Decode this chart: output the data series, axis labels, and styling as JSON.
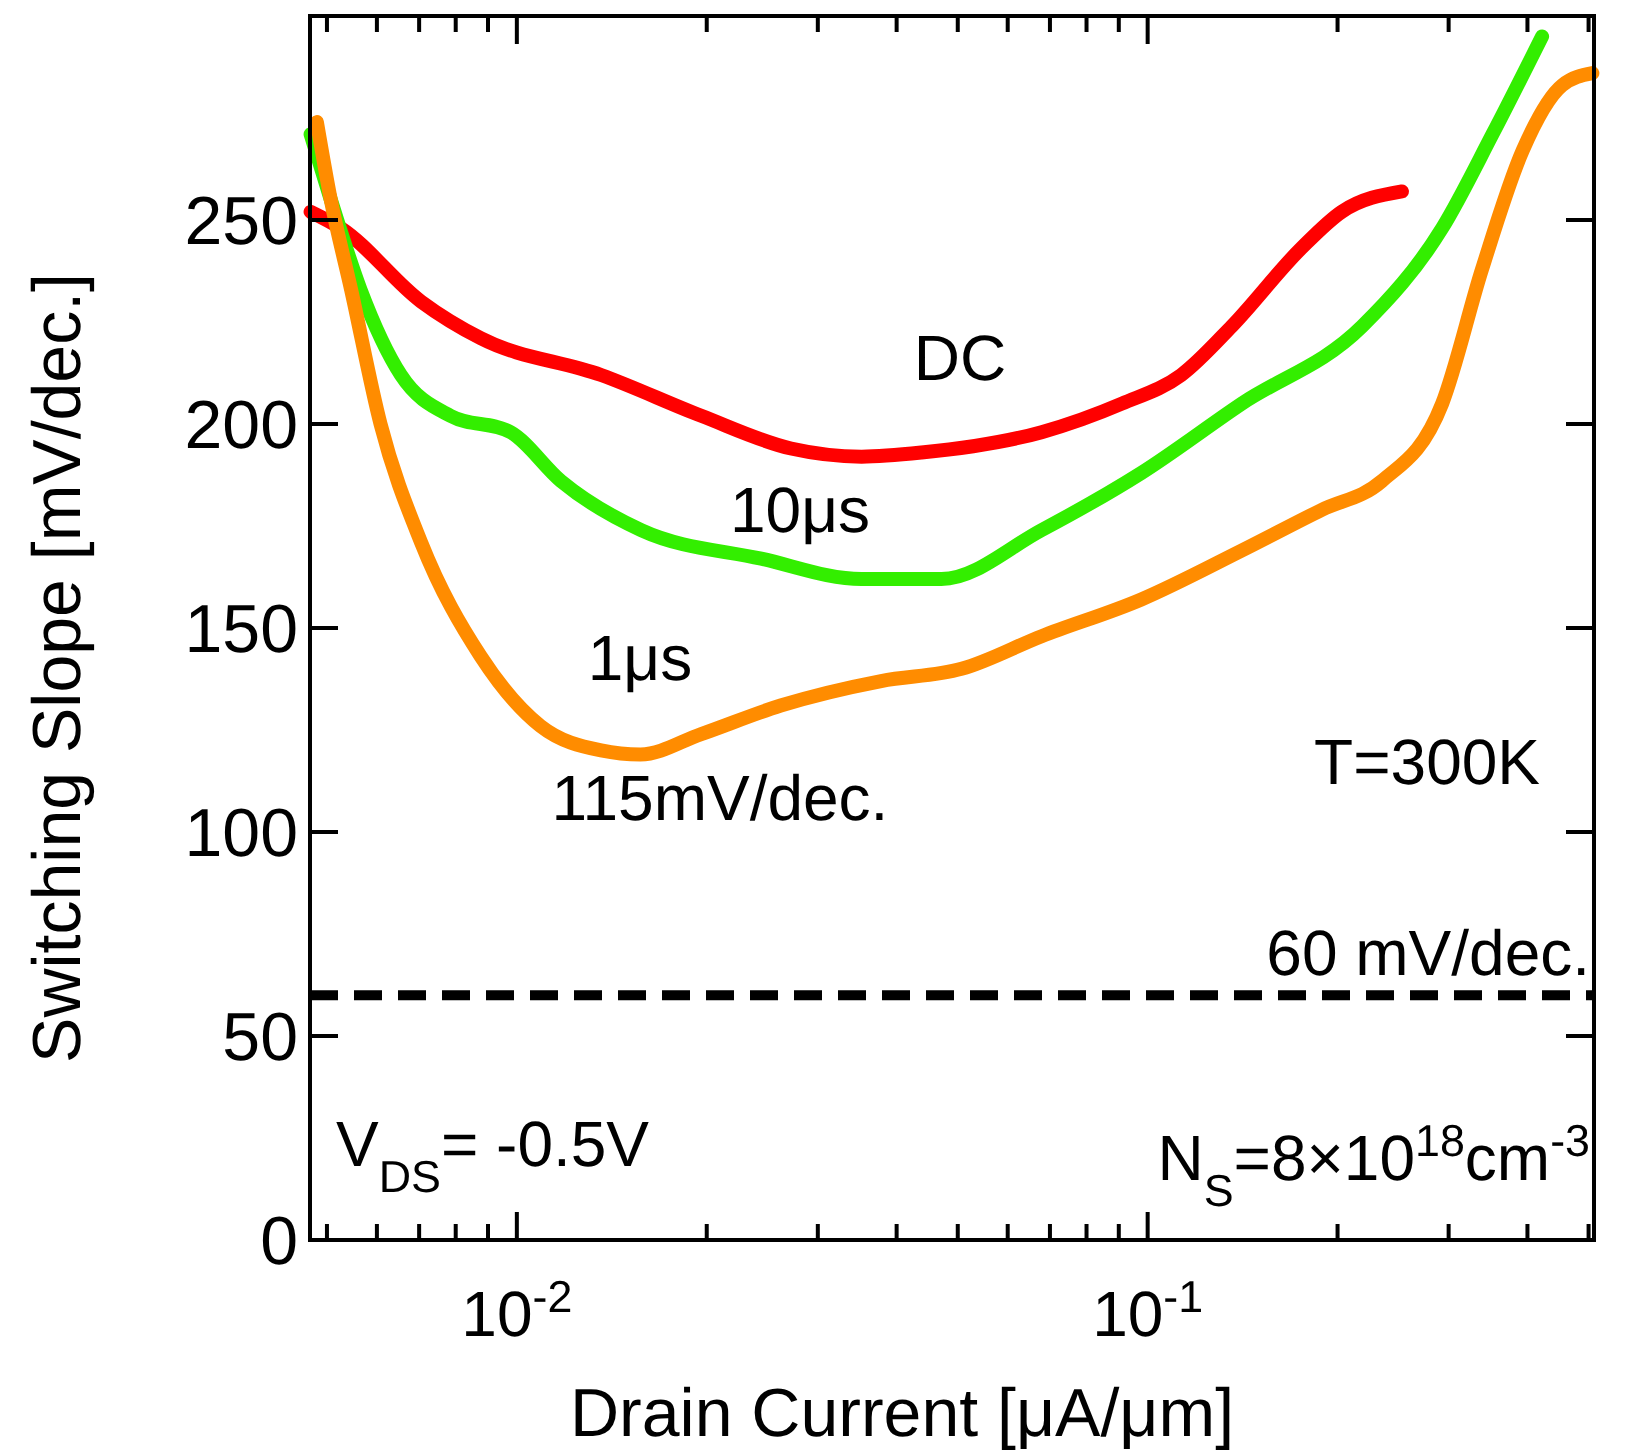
{
  "chart_data": {
    "type": "line",
    "xlabel": "Drain Current [μA/μm]",
    "ylabel": "Switching Slope [mV/dec.]",
    "log": "x",
    "xlim": [
      0.0047,
      0.51
    ],
    "ylim": [
      0,
      300
    ],
    "xticks": [
      {
        "value": 0.005,
        "label": null
      },
      {
        "value": 0.006,
        "label": null
      },
      {
        "value": 0.007,
        "label": null
      },
      {
        "value": 0.008,
        "label": null
      },
      {
        "value": 0.009,
        "label": null
      },
      {
        "value": 0.01,
        "label": "10$^{-2}$"
      },
      {
        "value": 0.02,
        "label": null
      },
      {
        "value": 0.03,
        "label": null
      },
      {
        "value": 0.04,
        "label": null
      },
      {
        "value": 0.05,
        "label": null
      },
      {
        "value": 0.06,
        "label": null
      },
      {
        "value": 0.07,
        "label": null
      },
      {
        "value": 0.08,
        "label": null
      },
      {
        "value": 0.09,
        "label": null
      },
      {
        "value": 0.1,
        "label": "10$^{-1}$"
      },
      {
        "value": 0.2,
        "label": null
      },
      {
        "value": 0.3,
        "label": null
      },
      {
        "value": 0.4,
        "label": null
      },
      {
        "value": 0.5,
        "label": null
      }
    ],
    "yticks": [
      0,
      50,
      100,
      150,
      200,
      250
    ],
    "grid": false,
    "legend": false,
    "marker": "none",
    "line_style": "solid",
    "series": [
      {
        "name": "DC",
        "color": "#ff0000",
        "x": [
          0.00471,
          0.00526,
          0.00705,
          0.00877,
          0.0136,
          0.0196,
          0.0272,
          0.0352,
          0.0438,
          0.0679,
          0.091,
          0.113,
          0.136,
          0.175,
          0.203,
          0.253
        ],
        "values": [
          252,
          248,
          230,
          221,
          212,
          202,
          194,
          192,
          193,
          198,
          205,
          212,
          224,
          243,
          252,
          257
        ]
      },
      {
        "name": "10μs",
        "color": "#33ee00",
        "x": [
          0.00471,
          0.00507,
          0.00565,
          0.00655,
          0.00785,
          0.00977,
          0.01175,
          0.01574,
          0.0244,
          0.0352,
          0.0471,
          0.0679,
          0.0977,
          0.141,
          0.219,
          0.293,
          0.352,
          0.422
        ],
        "values": [
          271,
          255,
          233,
          212,
          202,
          198,
          186,
          174,
          167,
          162,
          162,
          174,
          188,
          205,
          224,
          248,
          271,
          295
        ]
      },
      {
        "name": "1μs",
        "color": "#ff8c00",
        "x": [
          0.00482,
          0.00507,
          0.00546,
          0.00608,
          0.00705,
          0.00877,
          0.0109,
          0.0136,
          0.0157,
          0.0196,
          0.0262,
          0.0378,
          0.0507,
          0.0679,
          0.0977,
          0.141,
          0.189,
          0.235,
          0.293,
          0.339,
          0.393,
          0.454,
          0.507
        ],
        "values": [
          274,
          255,
          233,
          200,
          171,
          143,
          126,
          120,
          119,
          124,
          131,
          137,
          140,
          148,
          157,
          169,
          179,
          186,
          205,
          238,
          267,
          283,
          286
        ]
      }
    ],
    "ref_lines": [
      {
        "axis": "y",
        "value": 60,
        "label": "60 mV/dec.",
        "color": "#000000",
        "line_style": "dashed"
      }
    ],
    "annotations": [
      "115mV/dec.",
      "T=300K",
      "V$_{DS}$= -0.5V",
      "N$_{S}$=8×10$^{18}$cm$^{-3}$"
    ]
  }
}
